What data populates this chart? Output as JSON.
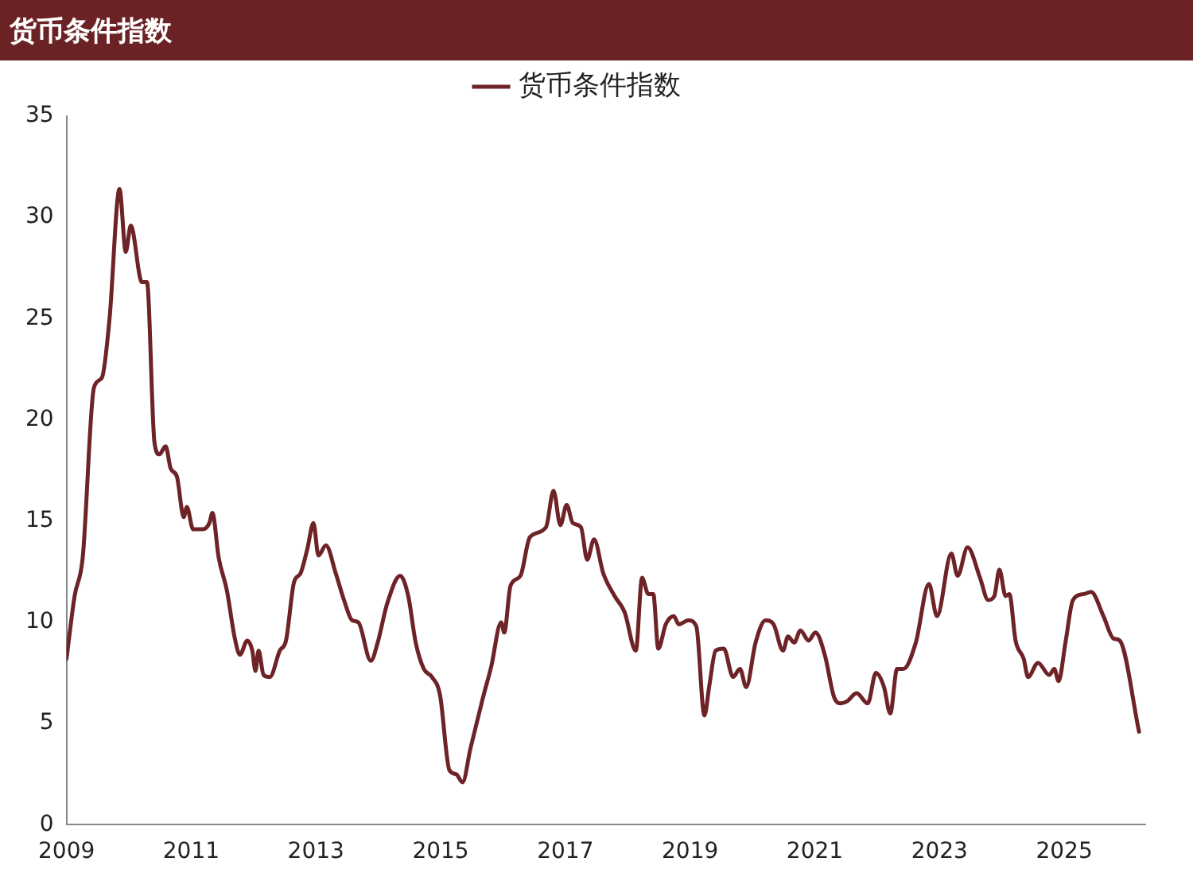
{
  "chart_data": {
    "type": "line",
    "title": "货币条件指数",
    "x": [
      2009.0,
      2009.13,
      2009.26,
      2009.44,
      2009.57,
      2009.69,
      2009.85,
      2009.95,
      2010.03,
      2010.21,
      2010.29,
      2010.41,
      2010.49,
      2010.59,
      2010.67,
      2010.77,
      2010.88,
      2010.93,
      2011.03,
      2011.19,
      2011.29,
      2011.34,
      2011.44,
      2011.57,
      2011.7,
      2011.78,
      2011.9,
      2011.98,
      2012.03,
      2012.08,
      2012.16,
      2012.26,
      2012.42,
      2012.52,
      2012.65,
      2012.75,
      2012.86,
      2012.96,
      2013.04,
      2013.16,
      2013.32,
      2013.45,
      2013.58,
      2013.68,
      2013.88,
      2013.99,
      2014.14,
      2014.35,
      2014.48,
      2014.6,
      2014.73,
      2014.86,
      2014.99,
      2015.14,
      2015.25,
      2015.35,
      2015.48,
      2015.68,
      2015.81,
      2015.97,
      2016.02,
      2016.12,
      2016.28,
      2016.43,
      2016.69,
      2016.81,
      2016.92,
      2017.02,
      2017.12,
      2017.25,
      2017.35,
      2017.46,
      2017.61,
      2017.79,
      2017.95,
      2018.13,
      2018.23,
      2018.33,
      2018.41,
      2018.49,
      2018.61,
      2018.74,
      2018.82,
      2018.97,
      2019.1,
      2019.23,
      2019.31,
      2019.41,
      2019.54,
      2019.69,
      2019.8,
      2019.9,
      2020.05,
      2020.21,
      2020.34,
      2020.49,
      2020.57,
      2020.67,
      2020.77,
      2020.9,
      2021.01,
      2021.16,
      2021.31,
      2021.42,
      2021.52,
      2021.67,
      2021.85,
      2021.98,
      2022.11,
      2022.21,
      2022.32,
      2022.42,
      2022.62,
      2022.83,
      2022.96,
      2023.19,
      2023.29,
      2023.45,
      2023.65,
      2023.78,
      2023.88,
      2023.96,
      2024.06,
      2024.12,
      2024.22,
      2024.35,
      2024.42,
      2024.58,
      2024.76,
      2024.84,
      2024.91,
      2025.02,
      2025.14,
      2025.32,
      2025.43,
      2025.63,
      2025.79,
      2025.89,
      2026.2
    ],
    "series": [
      {
        "name": "货币条件指数",
        "color": "#6e2326",
        "values": [
          8.2,
          11.3,
          13.2,
          21.6,
          22.1,
          25,
          31.4,
          28.3,
          29.6,
          26.8,
          26.8,
          18.9,
          18.3,
          18.7,
          17.6,
          17.2,
          15.2,
          15.7,
          14.6,
          14.6,
          14.9,
          15.4,
          13.2,
          11.6,
          9.2,
          8.4,
          9.1,
          8.6,
          7.6,
          8.6,
          7.4,
          7.3,
          8.6,
          9.1,
          12,
          12.4,
          13.6,
          14.9,
          13.3,
          13.8,
          12.4,
          11.1,
          10.1,
          10,
          8.1,
          9,
          10.9,
          12.3,
          11.3,
          9,
          7.7,
          7.3,
          6.4,
          2.7,
          2.5,
          2.1,
          3.8,
          6.3,
          7.8,
          10,
          9.5,
          11.8,
          12.3,
          14.2,
          14.7,
          16.5,
          14.8,
          15.8,
          14.9,
          14.7,
          13.1,
          14.1,
          12.4,
          11.3,
          10.5,
          8.6,
          12.2,
          11.4,
          11.4,
          8.7,
          9.9,
          10.3,
          9.9,
          10.1,
          9.8,
          5.4,
          6.9,
          8.6,
          8.7,
          7.3,
          7.7,
          6.8,
          9,
          10.1,
          9.9,
          8.6,
          9.3,
          9,
          9.6,
          9.1,
          9.5,
          8.4,
          6.3,
          6,
          6.1,
          6.5,
          6,
          7.5,
          6.8,
          5.5,
          7.7,
          7.7,
          9,
          11.9,
          10.3,
          13.4,
          12.3,
          13.7,
          12.2,
          11.1,
          11.3,
          12.6,
          11.3,
          11.4,
          9.1,
          8.2,
          7.3,
          8,
          7.4,
          7.7,
          7.1,
          9,
          11.1,
          11.4,
          11.5,
          10.3,
          9.2,
          9.1,
          4.6
        ]
      }
    ],
    "xlim": [
      2009,
      2026.3
    ],
    "xticks": [
      2009,
      2011,
      2013,
      2015,
      2017,
      2019,
      2021,
      2023,
      2025
    ],
    "ylim": [
      0,
      35
    ],
    "yticks": [
      0,
      5,
      10,
      15,
      20,
      25,
      30,
      35
    ],
    "grid": false,
    "legend": "top",
    "marker": "none",
    "line_style": "solid"
  }
}
